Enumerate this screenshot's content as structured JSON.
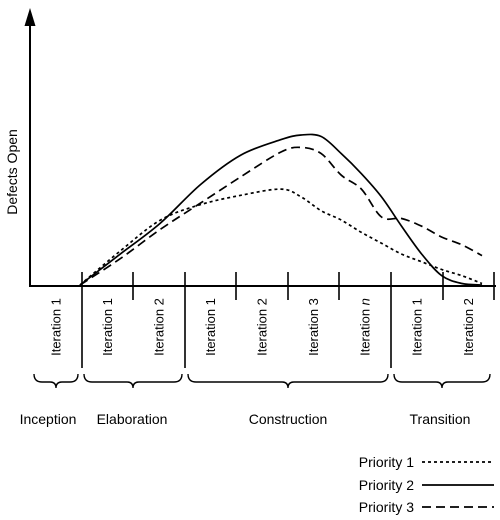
{
  "chart_data": {
    "type": "line",
    "ylabel": "Defects Open",
    "xlabel": "",
    "x": [
      0,
      10,
      20,
      30,
      40,
      50,
      55,
      60,
      65,
      70,
      75,
      80,
      85,
      90,
      95,
      100
    ],
    "series": [
      {
        "name": "Priority 1",
        "style": "dotted",
        "values": [
          0,
          22,
          42,
          52,
          58,
          62,
          57,
          48,
          42,
          34,
          27,
          20,
          15,
          10,
          6,
          1
        ]
      },
      {
        "name": "Priority 2",
        "style": "solid",
        "values": [
          0,
          20,
          40,
          65,
          84,
          94,
          97,
          96,
          85,
          72,
          57,
          38,
          20,
          6,
          1,
          0
        ]
      },
      {
        "name": "Priority 3",
        "style": "dashed",
        "values": [
          0,
          17,
          36,
          53,
          70,
          86,
          89,
          85,
          71,
          62,
          44,
          43,
          38,
          31,
          26,
          19
        ]
      }
    ],
    "ylim": [
      0,
      110
    ],
    "xlim": [
      0,
      100
    ],
    "grid": false,
    "legend_position": "bottom-right"
  },
  "iterations": [
    {
      "prefix": "Iteration ",
      "num": "1",
      "italic": false
    },
    {
      "prefix": "Iteration ",
      "num": "1",
      "italic": false
    },
    {
      "prefix": "Iteration ",
      "num": "2",
      "italic": false
    },
    {
      "prefix": "Iteration ",
      "num": "1",
      "italic": false
    },
    {
      "prefix": "Iteration ",
      "num": "2",
      "italic": false
    },
    {
      "prefix": "Iteration ",
      "num": "3",
      "italic": false
    },
    {
      "prefix": "Iteration ",
      "num": "n",
      "italic": true
    },
    {
      "prefix": "Iteration ",
      "num": "1",
      "italic": false
    },
    {
      "prefix": "Iteration ",
      "num": "2",
      "italic": false
    }
  ],
  "phases": [
    {
      "label": "Inception",
      "iterations": 1
    },
    {
      "label": "Elaboration",
      "iterations": 2
    },
    {
      "label": "Construction",
      "iterations": 4
    },
    {
      "label": "Transition",
      "iterations": 2
    }
  ]
}
